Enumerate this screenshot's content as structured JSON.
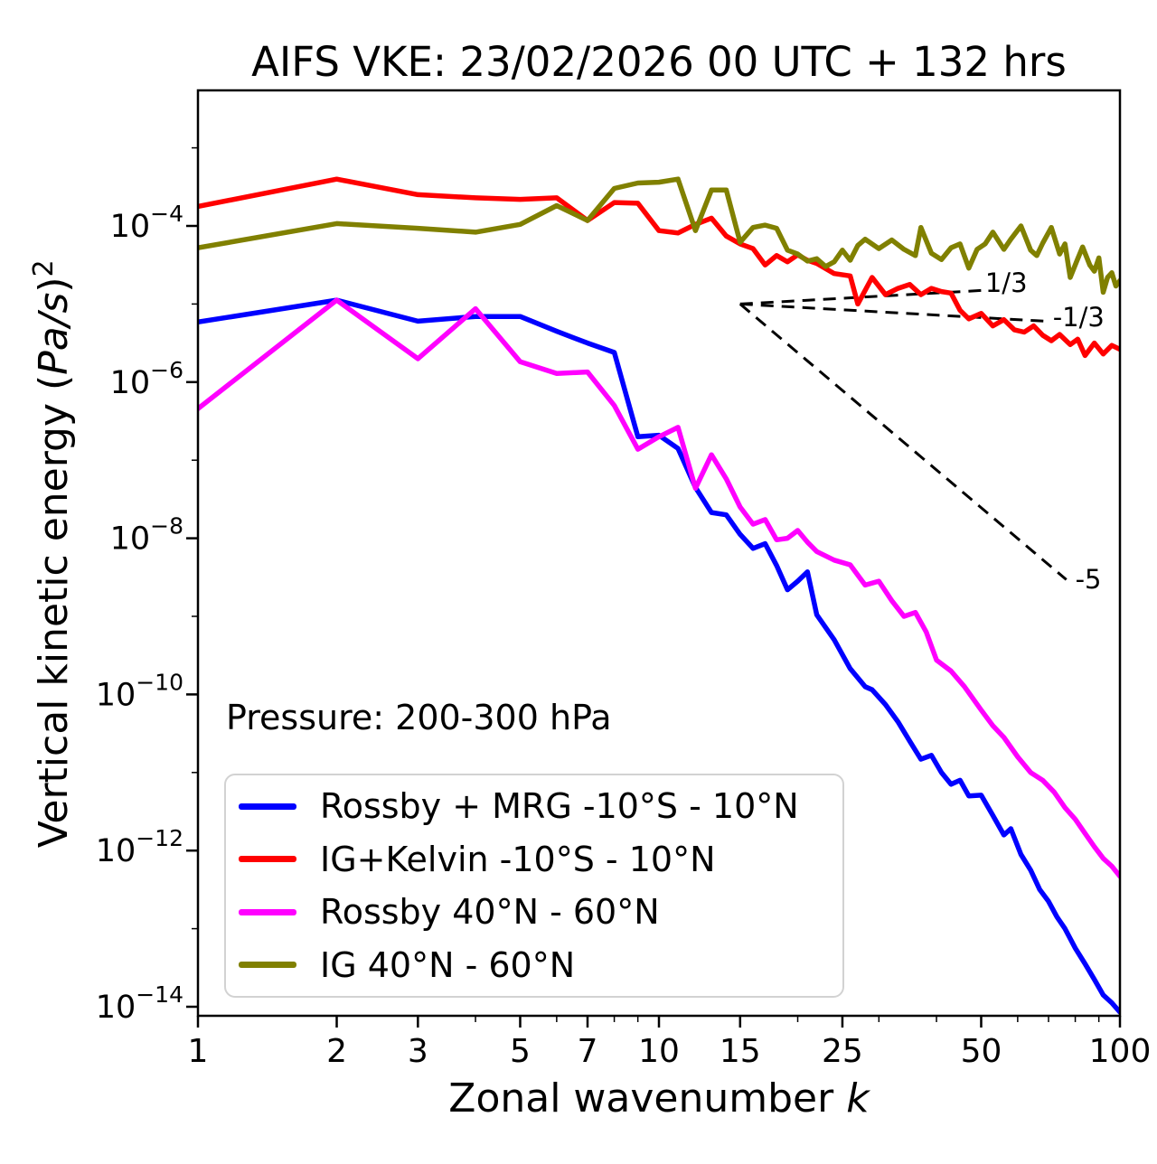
{
  "title": "AIFS VKE: 23/02/2026 00 UTC + 132 hrs",
  "pressure_label": "Pressure: 200-300 hPa",
  "axes": {
    "xlabel_prefix": "Zonal wavenumber ",
    "xlabel_var": "k",
    "ylabel_prefix": "Vertical kinetic energy (",
    "ylabel_var": "Pa/s",
    "ylabel_close": ")",
    "ylabel_exponent": "2"
  },
  "legend": {
    "items": [
      {
        "label": "Rossby + MRG -10°S - 10°N"
      },
      {
        "label": "IG+Kelvin -10°S - 10°N"
      },
      {
        "label": "Rossby 40°N - 60°N"
      },
      {
        "label": "IG 40°N - 60°N"
      }
    ]
  },
  "chart_data": {
    "type": "line",
    "x_scale": "log",
    "y_scale": "log",
    "xlim": [
      1,
      100
    ],
    "ylim_log10": [
      -14.11,
      -2.26
    ],
    "grid": false,
    "legend_position": "lower-left",
    "x_major_ticks": [
      "1",
      "2",
      "3",
      "5",
      "7",
      "10",
      "15",
      "25",
      "50",
      "100"
    ],
    "x_major_tick_values": [
      1,
      2,
      3,
      5,
      7,
      10,
      15,
      25,
      50,
      100
    ],
    "x_minor_tick_values": [
      4,
      6,
      8,
      9,
      20,
      30,
      40,
      60,
      70,
      80,
      90
    ],
    "y_tick_base": "10",
    "y_major_tick_exponent_labels": [
      "−4",
      "−6",
      "−8",
      "−10",
      "−12",
      "−14"
    ],
    "y_major_tick_exponents": [
      -4,
      -6,
      -8,
      -10,
      -12,
      -14
    ],
    "y_minor_tick_exponents": [
      -3,
      -5,
      -7,
      -9,
      -11,
      -13
    ],
    "series": [
      {
        "name": "Rossby + MRG -10°S - 10°N",
        "color": "#0000ff",
        "points_k_log10E": [
          [
            1,
            -5.23
          ],
          [
            2,
            -4.95
          ],
          [
            3,
            -5.22
          ],
          [
            4,
            -5.16
          ],
          [
            5,
            -5.16
          ],
          [
            6,
            -5.35
          ],
          [
            7,
            -5.5
          ],
          [
            8,
            -5.62
          ],
          [
            9,
            -6.7
          ],
          [
            10,
            -6.68
          ],
          [
            11,
            -6.85
          ],
          [
            12,
            -7.35
          ],
          [
            13,
            -7.67
          ],
          [
            14,
            -7.7
          ],
          [
            15,
            -7.95
          ],
          [
            16,
            -8.13
          ],
          [
            17,
            -8.07
          ],
          [
            18,
            -8.35
          ],
          [
            19,
            -8.66
          ],
          [
            20,
            -8.55
          ],
          [
            21,
            -8.43
          ],
          [
            22,
            -8.98
          ],
          [
            24,
            -9.3
          ],
          [
            26,
            -9.67
          ],
          [
            28,
            -9.9
          ],
          [
            29,
            -9.94
          ],
          [
            31,
            -10.13
          ],
          [
            33,
            -10.35
          ],
          [
            35,
            -10.6
          ],
          [
            37,
            -10.83
          ],
          [
            39,
            -10.78
          ],
          [
            41,
            -11.0
          ],
          [
            43,
            -11.15
          ],
          [
            45,
            -11.1
          ],
          [
            47,
            -11.3
          ],
          [
            50,
            -11.29
          ],
          [
            53,
            -11.55
          ],
          [
            56,
            -11.8
          ],
          [
            58,
            -11.72
          ],
          [
            61,
            -12.05
          ],
          [
            64,
            -12.25
          ],
          [
            67,
            -12.5
          ],
          [
            70,
            -12.65
          ],
          [
            73,
            -12.85
          ],
          [
            76,
            -13.0
          ],
          [
            80,
            -13.25
          ],
          [
            84,
            -13.45
          ],
          [
            88,
            -13.65
          ],
          [
            92,
            -13.85
          ],
          [
            96,
            -13.95
          ],
          [
            100,
            -14.07
          ]
        ]
      },
      {
        "name": "IG+Kelvin -10°S - 10°N",
        "color": "#ff0000",
        "points_k_log10E": [
          [
            1,
            -3.75
          ],
          [
            2,
            -3.4
          ],
          [
            3,
            -3.6
          ],
          [
            4,
            -3.64
          ],
          [
            5,
            -3.66
          ],
          [
            6,
            -3.64
          ],
          [
            7,
            -3.93
          ],
          [
            8,
            -3.7
          ],
          [
            9,
            -3.71
          ],
          [
            10,
            -4.06
          ],
          [
            11,
            -4.09
          ],
          [
            12,
            -3.98
          ],
          [
            13,
            -3.9
          ],
          [
            14,
            -4.13
          ],
          [
            15,
            -4.23
          ],
          [
            16,
            -4.29
          ],
          [
            17,
            -4.5
          ],
          [
            18,
            -4.38
          ],
          [
            19,
            -4.46
          ],
          [
            20,
            -4.37
          ],
          [
            21,
            -4.44
          ],
          [
            22,
            -4.48
          ],
          [
            24,
            -4.61
          ],
          [
            26,
            -4.64
          ],
          [
            27,
            -5.0
          ],
          [
            29,
            -4.66
          ],
          [
            31,
            -4.88
          ],
          [
            33,
            -4.8
          ],
          [
            35,
            -4.75
          ],
          [
            37,
            -4.88
          ],
          [
            39,
            -4.8
          ],
          [
            41,
            -4.84
          ],
          [
            43,
            -4.86
          ],
          [
            45,
            -5.08
          ],
          [
            47,
            -5.19
          ],
          [
            50,
            -5.12
          ],
          [
            53,
            -5.28
          ],
          [
            56,
            -5.2
          ],
          [
            59,
            -5.33
          ],
          [
            62,
            -5.36
          ],
          [
            65,
            -5.28
          ],
          [
            68,
            -5.4
          ],
          [
            71,
            -5.47
          ],
          [
            74,
            -5.39
          ],
          [
            78,
            -5.52
          ],
          [
            81,
            -5.45
          ],
          [
            84,
            -5.66
          ],
          [
            88,
            -5.5
          ],
          [
            92,
            -5.64
          ],
          [
            96,
            -5.53
          ],
          [
            100,
            -5.58
          ]
        ]
      },
      {
        "name": "Rossby 40°N - 60°N",
        "color": "#ff00ff",
        "points_k_log10E": [
          [
            1,
            -6.34
          ],
          [
            2,
            -4.95
          ],
          [
            3,
            -5.7
          ],
          [
            4,
            -5.06
          ],
          [
            5,
            -5.74
          ],
          [
            6,
            -5.89
          ],
          [
            7,
            -5.87
          ],
          [
            8,
            -6.3
          ],
          [
            9,
            -6.86
          ],
          [
            10,
            -6.7
          ],
          [
            11,
            -6.58
          ],
          [
            12,
            -7.36
          ],
          [
            13,
            -6.93
          ],
          [
            14,
            -7.24
          ],
          [
            15,
            -7.6
          ],
          [
            16,
            -7.82
          ],
          [
            17,
            -7.76
          ],
          [
            18,
            -8.02
          ],
          [
            19,
            -8.0
          ],
          [
            20,
            -7.9
          ],
          [
            21,
            -8.05
          ],
          [
            22,
            -8.17
          ],
          [
            24,
            -8.28
          ],
          [
            26,
            -8.34
          ],
          [
            28,
            -8.6
          ],
          [
            30,
            -8.55
          ],
          [
            32,
            -8.8
          ],
          [
            34,
            -9.0
          ],
          [
            36,
            -8.95
          ],
          [
            38,
            -9.2
          ],
          [
            40,
            -9.56
          ],
          [
            43,
            -9.7
          ],
          [
            46,
            -9.9
          ],
          [
            50,
            -10.2
          ],
          [
            53,
            -10.4
          ],
          [
            56,
            -10.55
          ],
          [
            60,
            -10.8
          ],
          [
            64,
            -11.0
          ],
          [
            68,
            -11.1
          ],
          [
            72,
            -11.25
          ],
          [
            76,
            -11.45
          ],
          [
            80,
            -11.6
          ],
          [
            84,
            -11.78
          ],
          [
            88,
            -11.95
          ],
          [
            92,
            -12.1
          ],
          [
            96,
            -12.2
          ],
          [
            100,
            -12.33
          ]
        ]
      },
      {
        "name": "IG 40°N - 60°N",
        "color": "#808000",
        "points_k_log10E": [
          [
            1,
            -4.28
          ],
          [
            2,
            -3.97
          ],
          [
            3,
            -4.03
          ],
          [
            4,
            -4.08
          ],
          [
            5,
            -3.98
          ],
          [
            6,
            -3.74
          ],
          [
            7,
            -3.93
          ],
          [
            8,
            -3.52
          ],
          [
            9,
            -3.45
          ],
          [
            10,
            -3.44
          ],
          [
            11,
            -3.4
          ],
          [
            12,
            -4.06
          ],
          [
            13,
            -3.54
          ],
          [
            14,
            -3.54
          ],
          [
            15,
            -4.21
          ],
          [
            16,
            -4.02
          ],
          [
            17,
            -3.99
          ],
          [
            18,
            -4.03
          ],
          [
            19,
            -4.31
          ],
          [
            20,
            -4.36
          ],
          [
            21,
            -4.45
          ],
          [
            22,
            -4.42
          ],
          [
            23,
            -4.52
          ],
          [
            24,
            -4.46
          ],
          [
            25,
            -4.31
          ],
          [
            26,
            -4.44
          ],
          [
            27,
            -4.25
          ],
          [
            28,
            -4.17
          ],
          [
            30,
            -4.29
          ],
          [
            32,
            -4.18
          ],
          [
            34,
            -4.3
          ],
          [
            36,
            -4.38
          ],
          [
            37,
            -4.02
          ],
          [
            39,
            -4.35
          ],
          [
            41,
            -4.43
          ],
          [
            43,
            -4.28
          ],
          [
            45,
            -4.23
          ],
          [
            47,
            -4.54
          ],
          [
            49,
            -4.3
          ],
          [
            51,
            -4.23
          ],
          [
            53,
            -4.08
          ],
          [
            56,
            -4.3
          ],
          [
            58,
            -4.17
          ],
          [
            61,
            -4.0
          ],
          [
            64,
            -4.31
          ],
          [
            66,
            -4.38
          ],
          [
            68,
            -4.22
          ],
          [
            71,
            -4.02
          ],
          [
            74,
            -4.36
          ],
          [
            76,
            -4.23
          ],
          [
            78,
            -4.66
          ],
          [
            81,
            -4.42
          ],
          [
            83,
            -4.27
          ],
          [
            86,
            -4.5
          ],
          [
            88,
            -4.58
          ],
          [
            90,
            -4.41
          ],
          [
            92,
            -4.85
          ],
          [
            94,
            -4.66
          ],
          [
            96,
            -4.6
          ],
          [
            98,
            -4.77
          ],
          [
            100,
            -4.7
          ]
        ]
      }
    ],
    "reference_lines": [
      {
        "slope_label": "1/3",
        "points_k_log10E": [
          [
            15,
            -5.0
          ],
          [
            50,
            -4.826
          ]
        ]
      },
      {
        "slope_label": "-1/3",
        "points_k_log10E": [
          [
            15,
            -5.0
          ],
          [
            71,
            -5.225
          ]
        ]
      },
      {
        "slope_label": "-5",
        "points_k_log10E": [
          [
            15,
            -5.0
          ],
          [
            76.5,
            -8.53
          ]
        ]
      }
    ],
    "annotations": [
      {
        "label": "1/3",
        "k": 51,
        "log10E": -4.75
      },
      {
        "label": "-1/3",
        "k": 71.5,
        "log10E": -5.19
      },
      {
        "label": "-5",
        "k": 80,
        "log10E": -8.55
      }
    ]
  }
}
